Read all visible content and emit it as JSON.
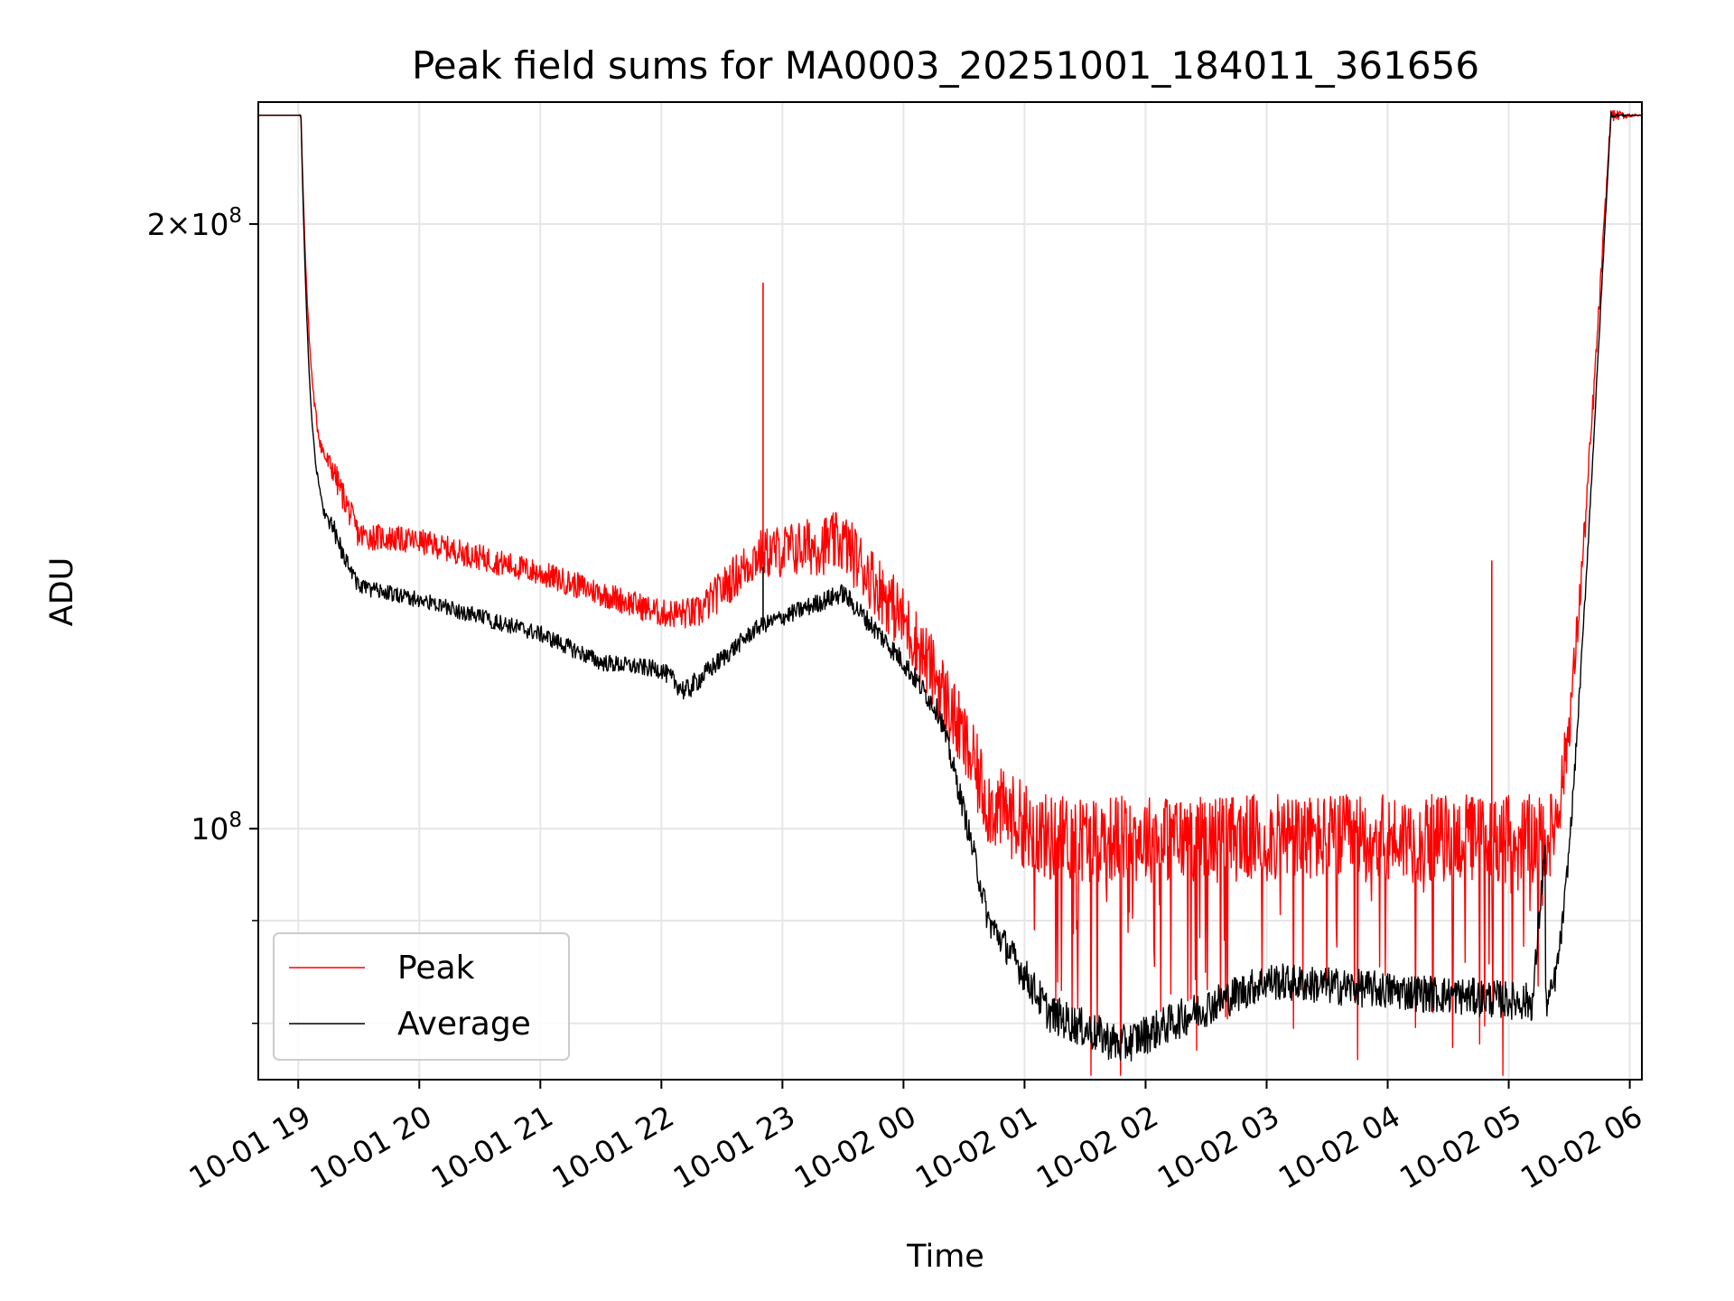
{
  "chart_data": {
    "type": "line",
    "title": "Peak field sums for MA0003_20251001_184011_361656",
    "xlabel": "Time",
    "ylabel": "ADU",
    "yscale": "log",
    "grid": true,
    "legend_position": "lower-left",
    "xlim_hours": [
      -0.33,
      11.1
    ],
    "ylim": [
      75000000,
      230000000
    ],
    "x_ticks": [
      {
        "hour": 0,
        "label": "10-01 19"
      },
      {
        "hour": 1,
        "label": "10-01 20"
      },
      {
        "hour": 2,
        "label": "10-01 21"
      },
      {
        "hour": 3,
        "label": "10-01 22"
      },
      {
        "hour": 4,
        "label": "10-01 23"
      },
      {
        "hour": 5,
        "label": "10-02 00"
      },
      {
        "hour": 6,
        "label": "10-02 01"
      },
      {
        "hour": 7,
        "label": "10-02 02"
      },
      {
        "hour": 8,
        "label": "10-02 03"
      },
      {
        "hour": 9,
        "label": "10-02 04"
      },
      {
        "hour": 10,
        "label": "10-02 05"
      },
      {
        "hour": 11,
        "label": "10-02 06"
      }
    ],
    "y_major_ticks": [
      {
        "value": 100000000,
        "mantissa": "",
        "exponent": "8"
      },
      {
        "value": 200000000,
        "mantissa": "2",
        "exponent": "8"
      }
    ],
    "y_minor_ticks": [
      80000000,
      90000000
    ],
    "x_hour_zero": "2025-10-01 19:00",
    "series": [
      {
        "name": "Peak",
        "color": "#ff0000",
        "noise_amp_adu": [
          0,
          0,
          2500000,
          2200000,
          2000000,
          2000000,
          2000000,
          2000000,
          2500000,
          4000000,
          5000000,
          5000000,
          5000000,
          5000000,
          5000000,
          5000000,
          5000000,
          0
        ],
        "x": [
          -0.33,
          0.0,
          0.3,
          0.5,
          1.0,
          2.0,
          2.5,
          3.0,
          3.3,
          3.8,
          4.5,
          5.0,
          5.3,
          5.7,
          6.2,
          7.0,
          10.3,
          11.1
        ],
        "values": [
          226000000,
          226000000,
          150000000,
          140000000,
          139000000,
          134000000,
          131000000,
          128000000,
          128000000,
          137000000,
          139000000,
          127000000,
          118000000,
          103000000,
          99000000,
          99000000,
          99000000,
          226000000
        ]
      },
      {
        "name": "Average",
        "color": "#000000",
        "noise_amp_adu": [
          0,
          0,
          1500000,
          1200000,
          1200000,
          1200000,
          1200000,
          1200000,
          1500000,
          1200000,
          1500000,
          1500000,
          1500000,
          1600000,
          1800000,
          1800000,
          1800000,
          1800000,
          0
        ],
        "x": [
          -0.33,
          0.0,
          0.3,
          0.5,
          1.0,
          2.0,
          2.5,
          3.0,
          3.2,
          3.8,
          4.5,
          5.0,
          5.3,
          5.7,
          6.2,
          6.8,
          8.0,
          10.2,
          11.1
        ],
        "values": [
          226000000,
          226000000,
          140000000,
          132000000,
          130000000,
          125000000,
          121000000,
          120000000,
          117000000,
          126000000,
          131000000,
          121000000,
          114000000,
          90000000,
          81000000,
          78000000,
          84000000,
          82000000,
          226000000
        ]
      }
    ],
    "spikes": [
      {
        "series": "Peak",
        "hour": 3.84,
        "value": 187000000
      },
      {
        "series": "Average",
        "hour": 3.84,
        "value": 135000000
      },
      {
        "series": "Peak",
        "hour": 9.86,
        "value": 136000000
      }
    ]
  }
}
